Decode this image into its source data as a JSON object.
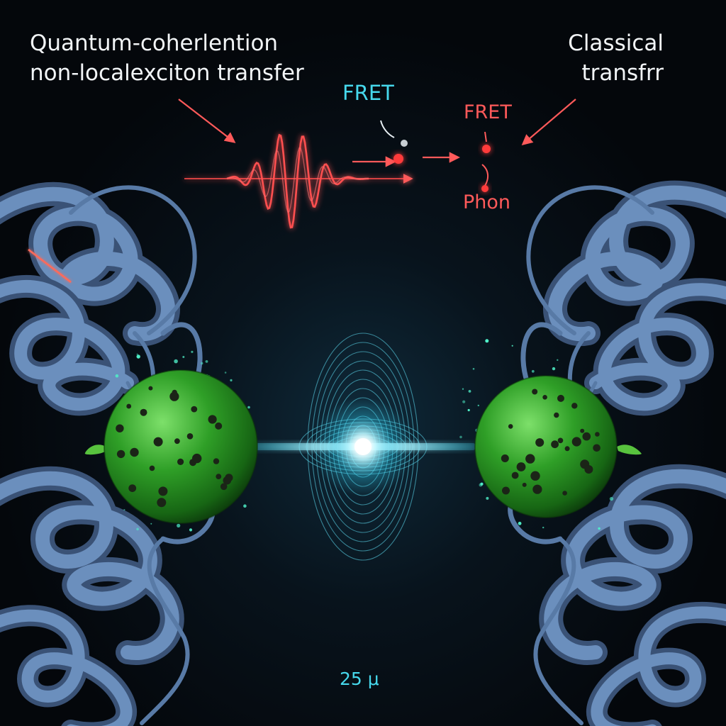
{
  "header": {
    "left_line_1": "Quantum-coherlention",
    "left_line_2": "non-localexciton transfer",
    "right_line_1": "Classical",
    "right_line_2": "transfrr"
  },
  "annotations": {
    "fret_quantum": "FRET",
    "fret_classical": "FRET",
    "phonon": "Phon",
    "scale": "25 μ"
  },
  "colors": {
    "background": "#05080d",
    "cyan_accent": "#46d8ec",
    "red_accent": "#ff5a5a",
    "protein": "#5c7da6",
    "chromophore": "#33a82a",
    "text": "#f2f5f7"
  },
  "elements": {
    "left_chromophore": "green-sphere",
    "right_chromophore": "green-sphere",
    "energy_burst": "cyan-wave-burst",
    "quantum_wave": "red-oscillation",
    "protein_scaffold": "ribbon-helix"
  }
}
